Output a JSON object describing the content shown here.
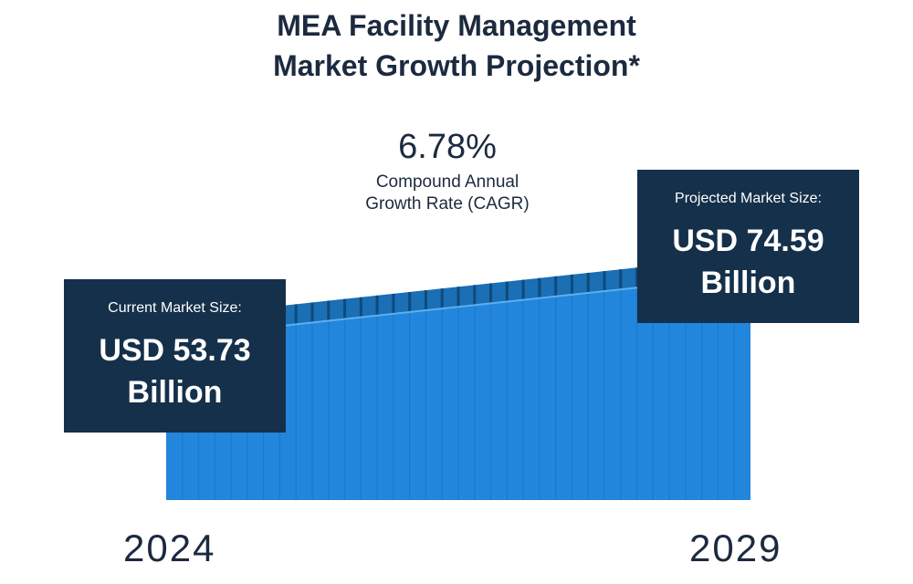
{
  "title": {
    "line1": "MEA Facility Management",
    "line2": "Market Growth Projection*"
  },
  "cagr": {
    "value": "6.78%",
    "label_line1": "Compound Annual",
    "label_line2": "Growth Rate (CAGR)"
  },
  "current_market": {
    "label": "Current Market Size:",
    "value_line1": "USD 53.73",
    "value_line2": "Billion"
  },
  "projected_market": {
    "label": "Projected Market Size:",
    "value_line1": "USD 74.59",
    "value_line2": "Billion"
  },
  "chart_data": {
    "type": "area",
    "x": [
      2024,
      2029
    ],
    "values": [
      53.73,
      74.59
    ],
    "unit": "USD Billion",
    "cagr_percent": 6.78,
    "start_label": "2024",
    "end_label": "2029"
  },
  "colors": {
    "area_fill": "#2386dd",
    "area_stripe": "#1a73c4",
    "top_band": "#1a6fb5",
    "top_stripe": "#0f4a7a",
    "box_bg": "#15304a",
    "text_dark": "#1c2a3f"
  }
}
